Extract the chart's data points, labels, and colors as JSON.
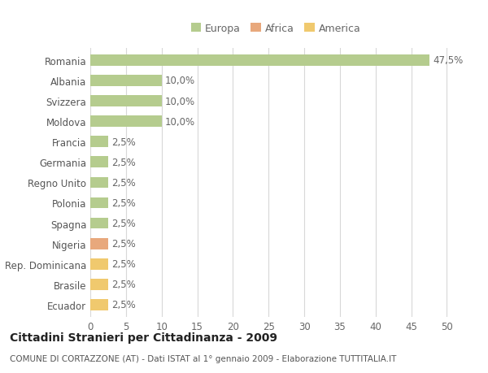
{
  "countries": [
    "Romania",
    "Albania",
    "Svizzera",
    "Moldova",
    "Francia",
    "Germania",
    "Regno Unito",
    "Polonia",
    "Spagna",
    "Nigeria",
    "Rep. Dominicana",
    "Brasile",
    "Ecuador"
  ],
  "values": [
    47.5,
    10.0,
    10.0,
    10.0,
    2.5,
    2.5,
    2.5,
    2.5,
    2.5,
    2.5,
    2.5,
    2.5,
    2.5
  ],
  "labels": [
    "47,5%",
    "10,0%",
    "10,0%",
    "10,0%",
    "2,5%",
    "2,5%",
    "2,5%",
    "2,5%",
    "2,5%",
    "2,5%",
    "2,5%",
    "2,5%",
    "2,5%"
  ],
  "continent": [
    "Europa",
    "Europa",
    "Europa",
    "Europa",
    "Europa",
    "Europa",
    "Europa",
    "Europa",
    "Europa",
    "Africa",
    "America",
    "America",
    "America"
  ],
  "colors": {
    "Europa": "#b5cc8e",
    "Africa": "#e8a87c",
    "America": "#f0c96e"
  },
  "legend_items": [
    {
      "label": "Europa",
      "color": "#b5cc8e"
    },
    {
      "label": "Africa",
      "color": "#e8a87c"
    },
    {
      "label": "America",
      "color": "#f0c96e"
    }
  ],
  "xlim": [
    0,
    52
  ],
  "xticks": [
    0,
    5,
    10,
    15,
    20,
    25,
    30,
    35,
    40,
    45,
    50
  ],
  "title": "Cittadini Stranieri per Cittadinanza - 2009",
  "subtitle": "COMUNE DI CORTAZZONE (AT) - Dati ISTAT al 1° gennaio 2009 - Elaborazione TUTTITALIA.IT",
  "background_color": "#ffffff",
  "grid_color": "#d8d8d8",
  "bar_height": 0.55,
  "label_fontsize": 8.5,
  "tick_fontsize": 8.5,
  "title_fontsize": 10,
  "subtitle_fontsize": 7.5,
  "legend_fontsize": 9
}
